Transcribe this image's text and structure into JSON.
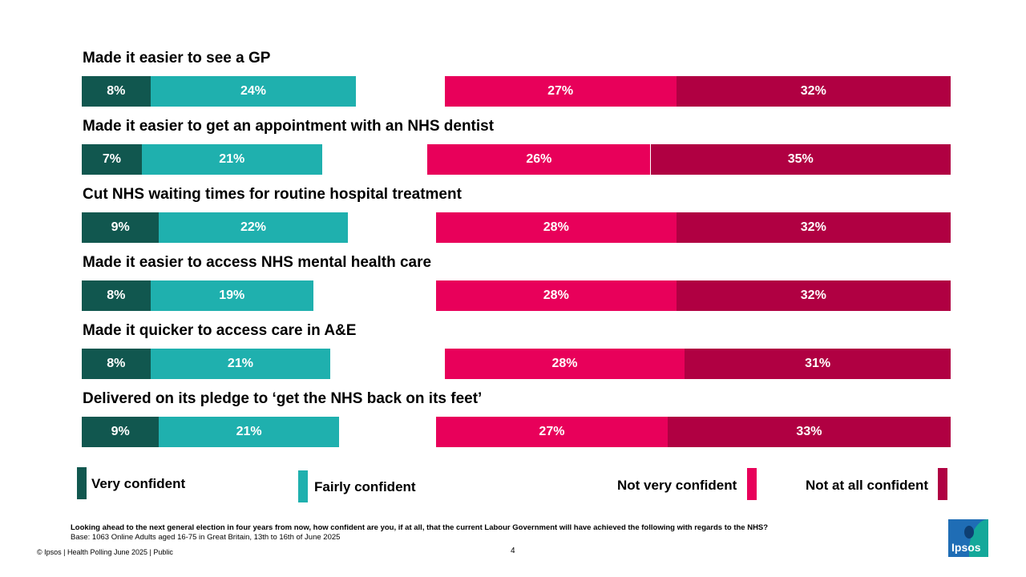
{
  "chart_data": {
    "type": "bar",
    "orientation": "horizontal-diverging",
    "categories": [
      "Made it easier to see a GP",
      "Made it easier to get an appointment with an NHS dentist",
      "Cut NHS waiting times for routine hospital treatment",
      "Made it easier to access NHS mental health care",
      "Made it quicker to access care in A&E",
      "Delivered on its pledge to ‘get the NHS back on its feet’"
    ],
    "series": [
      {
        "name": "Very confident",
        "color": "#11574f",
        "values": [
          8,
          7,
          9,
          8,
          8,
          9
        ],
        "labels": [
          "8%",
          "7%",
          "9%",
          "8%",
          "8%",
          "9%"
        ]
      },
      {
        "name": "Fairly confident",
        "color": "#1fb0ae",
        "values": [
          24,
          21,
          22,
          19,
          21,
          21
        ],
        "labels": [
          "24%",
          "21%",
          "22%",
          "19%",
          "21%",
          "21%"
        ]
      },
      {
        "name": "Not very confident",
        "color": "#e8005a",
        "values": [
          27,
          26,
          28,
          28,
          28,
          27
        ],
        "labels": [
          "27%",
          "26%",
          "28%",
          "28%",
          "28%",
          "27%"
        ]
      },
      {
        "name": "Not at all confident",
        "color": "#b00042",
        "values": [
          32,
          35,
          32,
          32,
          31,
          33
        ],
        "labels": [
          "32%",
          "35%",
          "32%",
          "32%",
          "31%",
          "33%"
        ]
      }
    ]
  },
  "legend": {
    "very": "Very confident",
    "fairly": "Fairly confident",
    "not_very": "Not very confident",
    "not_at_all": "Not at all confident"
  },
  "footnote": {
    "question": "Looking ahead to the next general election in four years from now, how confident are you, if at all, that the current Labour Government will have achieved the following with regards to the NHS?",
    "base": "Base: 1063 Online Adults aged 16-75 in Great Britain, 13th to 16th of June 2025"
  },
  "footer": {
    "source": "© Ipsos | Health Polling June 2025 | Public",
    "page": "4"
  },
  "logo": {
    "text": "Ipsos"
  }
}
